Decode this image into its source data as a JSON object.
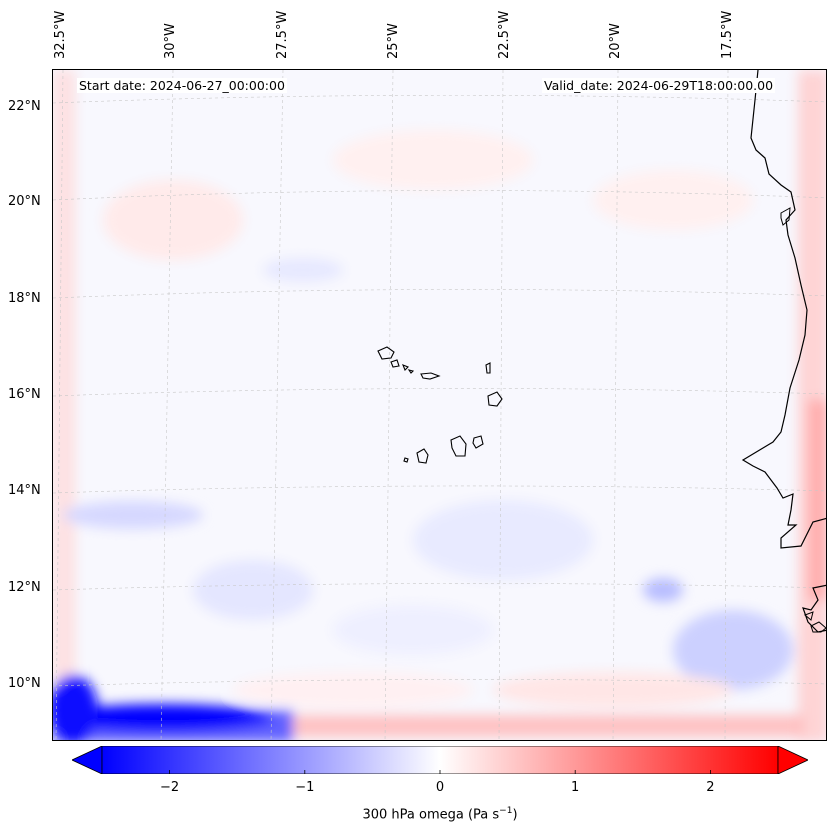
{
  "map": {
    "start_date": "Start date: 2024-06-27_00:00:00",
    "valid_date": "Valid_date: 2024-06-29T18:00:00.00",
    "lat_labels": [
      "22°N",
      "20°N",
      "18°N",
      "16°N",
      "14°N",
      "12°N",
      "10°N"
    ],
    "lon_labels": [
      "32.5°W",
      "30°W",
      "27.5°W",
      "25°W",
      "22.5°W",
      "20°W",
      "17.5°W"
    ],
    "projection_note": "lat/lon gridlines dashed light grey",
    "features": [
      "Cape Verde islands",
      "West African coastline"
    ]
  },
  "colorbar": {
    "label": "300 hPa omega (Pa s⁻¹)",
    "label_main": "300 hPa omega (Pa s",
    "label_sup": "−1",
    "label_close": ")",
    "ticks": [
      "−2",
      "−1",
      "0",
      "1",
      "2"
    ],
    "tick_values": [
      -2,
      -1,
      0,
      1,
      2
    ],
    "range": [
      -2.5,
      2.5
    ],
    "cmap": "bwr",
    "colors": {
      "min": "#0000ff",
      "mid": "#ffffff",
      "max": "#ff0000"
    }
  }
}
